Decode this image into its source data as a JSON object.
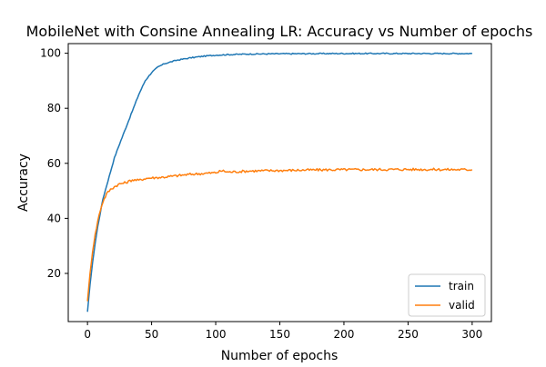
{
  "chart_data": {
    "type": "line",
    "title": "MobileNet with Consine Annealing LR: Accuracy vs Number of epochs",
    "xlabel": "Number of epochs",
    "ylabel": "Accuracy",
    "xlim": [
      -15,
      315
    ],
    "ylim": [
      2.5,
      103.5
    ],
    "xticks": [
      0,
      50,
      100,
      150,
      200,
      250,
      300
    ],
    "yticks": [
      20,
      40,
      60,
      80,
      100
    ],
    "grid": false,
    "legend_position": "lower right",
    "series": [
      {
        "name": "train",
        "color": "#1f77b4",
        "points": [
          [
            0,
            6
          ],
          [
            2,
            16
          ],
          [
            4,
            24
          ],
          [
            6,
            31
          ],
          [
            8,
            37
          ],
          [
            10,
            42
          ],
          [
            12,
            47
          ],
          [
            15,
            52
          ],
          [
            18,
            57
          ],
          [
            21,
            62
          ],
          [
            25,
            67
          ],
          [
            30,
            73
          ],
          [
            35,
            79
          ],
          [
            40,
            85
          ],
          [
            45,
            90
          ],
          [
            50,
            93
          ],
          [
            55,
            95
          ],
          [
            60,
            96.2
          ],
          [
            70,
            97.5
          ],
          [
            80,
            98.3
          ],
          [
            90,
            98.9
          ],
          [
            100,
            99.3
          ],
          [
            110,
            99.5
          ],
          [
            125,
            99.7
          ],
          [
            150,
            99.8
          ],
          [
            200,
            99.9
          ],
          [
            250,
            99.9
          ],
          [
            300,
            99.9
          ]
        ]
      },
      {
        "name": "valid",
        "color": "#ff7f0e",
        "points": [
          [
            0,
            10
          ],
          [
            2,
            20
          ],
          [
            4,
            28
          ],
          [
            6,
            34
          ],
          [
            8,
            39
          ],
          [
            10,
            43
          ],
          [
            12,
            46
          ],
          [
            15,
            49
          ],
          [
            18,
            50.5
          ],
          [
            21,
            51.5
          ],
          [
            25,
            52.5
          ],
          [
            30,
            53
          ],
          [
            35,
            54
          ],
          [
            40,
            53.8
          ],
          [
            45,
            54.5
          ],
          [
            50,
            54.7
          ],
          [
            60,
            55
          ],
          [
            70,
            55.5
          ],
          [
            80,
            56
          ],
          [
            90,
            56.3
          ],
          [
            100,
            56.6
          ],
          [
            105,
            57.3
          ],
          [
            110,
            56.8
          ],
          [
            125,
            57.2
          ],
          [
            150,
            57.4
          ],
          [
            175,
            57.6
          ],
          [
            200,
            57.7
          ],
          [
            250,
            57.8
          ],
          [
            300,
            57.7
          ]
        ]
      }
    ]
  }
}
